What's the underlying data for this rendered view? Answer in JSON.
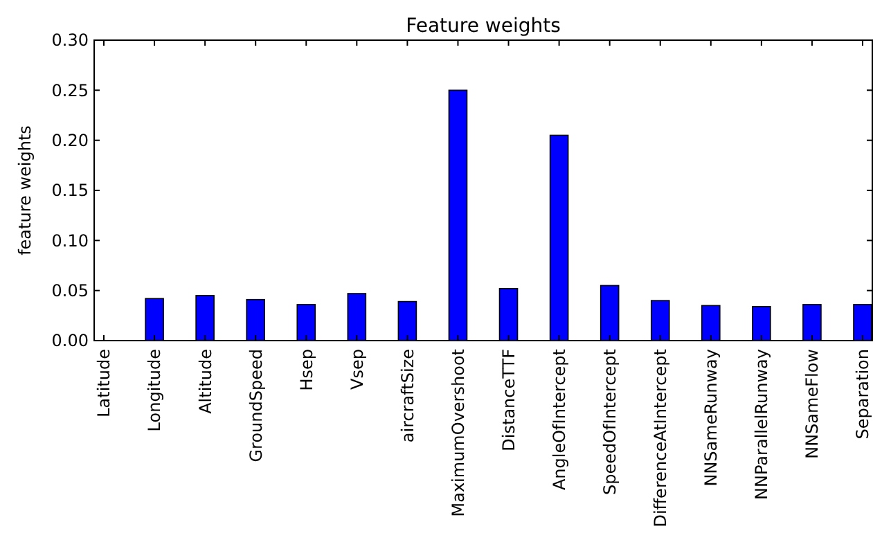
{
  "chart_data": {
    "type": "bar",
    "title": "Feature weights",
    "ylabel": "feature weights",
    "categories": [
      "Latitude",
      "Longitude",
      "Altitude",
      "GroundSpeed",
      "Hsep",
      "Vsep",
      "aircraftSize",
      "MaximumOvershoot",
      "DistanceTTF",
      "AngleOfIntercept",
      "SpeedOfIntercept",
      "DifferenceAtIntercept",
      "NNSameRunway",
      "NNParallelRunway",
      "NNSameFlow",
      "Separation"
    ],
    "values": [
      0,
      0.042,
      0.045,
      0.041,
      0.036,
      0.047,
      0.039,
      0.25,
      0.052,
      0.205,
      0.055,
      0.04,
      0.035,
      0.034,
      0.036,
      0.036
    ],
    "color": "#0000ff",
    "ylim": [
      0,
      0.3
    ],
    "yticks": [
      {
        "value": 0,
        "label": "0.00"
      },
      {
        "value": 0.05,
        "label": "0.05"
      },
      {
        "value": 0.1,
        "label": "0.10"
      },
      {
        "value": 0.15,
        "label": "0.15"
      },
      {
        "value": 0.2,
        "label": "0.20"
      },
      {
        "value": 0.25,
        "label": "0.25"
      },
      {
        "value": 0.3,
        "label": "0.30"
      }
    ],
    "grid": false
  }
}
